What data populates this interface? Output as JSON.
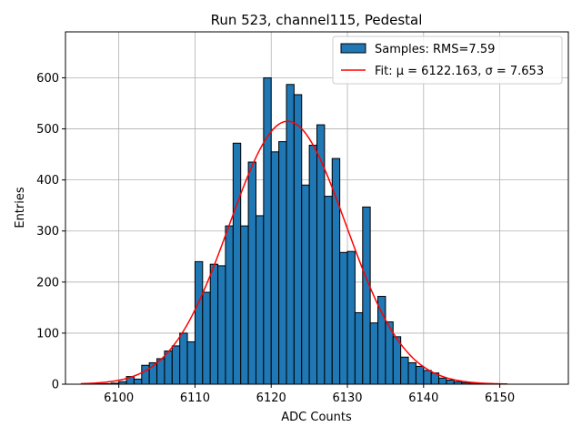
{
  "chart_data": {
    "type": "bar",
    "title": "Run 523, channel115, Pedestal",
    "xlabel": "ADC Counts",
    "ylabel": "Entries",
    "xlim": [
      6093,
      6159
    ],
    "ylim": [
      0,
      690
    ],
    "xticks": [
      6100,
      6110,
      6120,
      6130,
      6140,
      6150
    ],
    "yticks": [
      0,
      100,
      200,
      300,
      400,
      500,
      600
    ],
    "grid": true,
    "legend_position": "top-right",
    "bin_width": 1,
    "bin_edges_start": 6097,
    "bins": [
      {
        "x": 6097,
        "y": 1
      },
      {
        "x": 6098,
        "y": 1
      },
      {
        "x": 6099,
        "y": 2
      },
      {
        "x": 6100,
        "y": 5
      },
      {
        "x": 6101,
        "y": 15
      },
      {
        "x": 6102,
        "y": 10
      },
      {
        "x": 6103,
        "y": 37
      },
      {
        "x": 6104,
        "y": 42
      },
      {
        "x": 6105,
        "y": 50
      },
      {
        "x": 6106,
        "y": 65
      },
      {
        "x": 6107,
        "y": 75
      },
      {
        "x": 6108,
        "y": 100
      },
      {
        "x": 6109,
        "y": 83
      },
      {
        "x": 6110,
        "y": 240
      },
      {
        "x": 6111,
        "y": 180
      },
      {
        "x": 6112,
        "y": 235
      },
      {
        "x": 6113,
        "y": 232
      },
      {
        "x": 6114,
        "y": 310
      },
      {
        "x": 6115,
        "y": 472
      },
      {
        "x": 6116,
        "y": 310
      },
      {
        "x": 6117,
        "y": 435
      },
      {
        "x": 6118,
        "y": 330
      },
      {
        "x": 6119,
        "y": 600
      },
      {
        "x": 6120,
        "y": 455
      },
      {
        "x": 6121,
        "y": 475
      },
      {
        "x": 6122,
        "y": 587
      },
      {
        "x": 6123,
        "y": 567
      },
      {
        "x": 6124,
        "y": 390
      },
      {
        "x": 6125,
        "y": 468
      },
      {
        "x": 6126,
        "y": 508
      },
      {
        "x": 6127,
        "y": 368
      },
      {
        "x": 6128,
        "y": 442
      },
      {
        "x": 6129,
        "y": 258
      },
      {
        "x": 6130,
        "y": 260
      },
      {
        "x": 6131,
        "y": 140
      },
      {
        "x": 6132,
        "y": 347
      },
      {
        "x": 6133,
        "y": 120
      },
      {
        "x": 6134,
        "y": 172
      },
      {
        "x": 6135,
        "y": 122
      },
      {
        "x": 6136,
        "y": 93
      },
      {
        "x": 6137,
        "y": 53
      },
      {
        "x": 6138,
        "y": 42
      },
      {
        "x": 6139,
        "y": 35
      },
      {
        "x": 6140,
        "y": 27
      },
      {
        "x": 6141,
        "y": 22
      },
      {
        "x": 6142,
        "y": 12
      },
      {
        "x": 6143,
        "y": 8
      },
      {
        "x": 6144,
        "y": 5
      },
      {
        "x": 6145,
        "y": 3
      },
      {
        "x": 6146,
        "y": 2
      },
      {
        "x": 6147,
        "y": 1
      },
      {
        "x": 6148,
        "y": 1
      }
    ],
    "fit": {
      "mu": 6122.163,
      "sigma": 7.653,
      "amplitude": 515,
      "x_range": [
        6095,
        6151
      ]
    },
    "legend": [
      {
        "label": "Samples: RMS=7.59",
        "kind": "bar"
      },
      {
        "label": "Fit: μ = 6122.163, σ = 7.653",
        "kind": "line"
      }
    ],
    "colors": {
      "bar_fill": "#1f77b4",
      "bar_edge": "#000000",
      "fit_line": "#ff0000",
      "grid": "#b0b0b0"
    }
  }
}
